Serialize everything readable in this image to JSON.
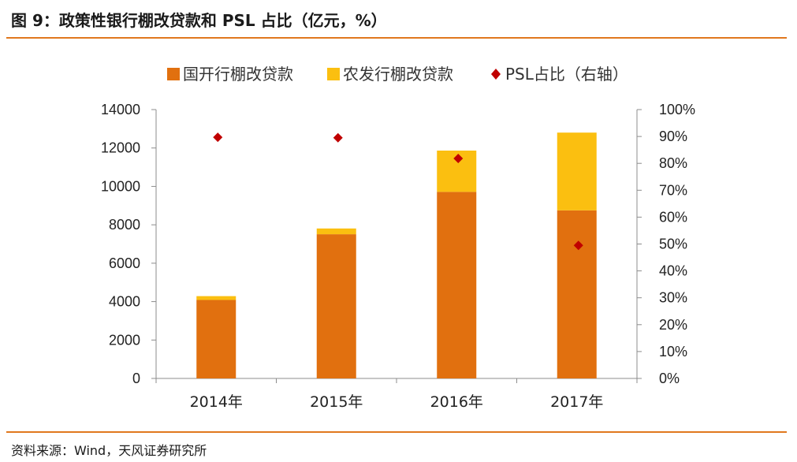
{
  "header": {
    "title": "图 9：政策性银行棚改贷款和 PSL 占比（亿元，%）"
  },
  "footer": {
    "source": "资料来源：Wind，天风证券研究所"
  },
  "colors": {
    "series1": "#e1700f",
    "series2": "#fbbf10",
    "series3": "#c00000",
    "rule": "#e0781e"
  },
  "chart_data": {
    "type": "bar",
    "stacked": true,
    "categories": [
      "2014年",
      "2015年",
      "2016年",
      "2017年"
    ],
    "series": [
      {
        "name": "国开行棚改贷款",
        "kind": "bar",
        "axis": "left",
        "values": [
          4086,
          7509,
          9715,
          8751
        ]
      },
      {
        "name": "农发行棚改贷款",
        "kind": "bar",
        "axis": "left",
        "values": [
          200,
          300,
          2150,
          4050
        ]
      },
      {
        "name": "PSL占比（右轴）",
        "kind": "scatter",
        "axis": "right",
        "values": [
          89.7,
          89.5,
          81.8,
          49.5
        ]
      }
    ],
    "yaxis_left": {
      "min": 0,
      "max": 14000,
      "ticks": [
        "0",
        "2000",
        "4000",
        "6000",
        "8000",
        "10000",
        "12000",
        "14000"
      ]
    },
    "yaxis_right": {
      "min": 0,
      "max": 100,
      "ticks": [
        "0%",
        "10%",
        "20%",
        "30%",
        "40%",
        "50%",
        "60%",
        "70%",
        "80%",
        "90%",
        "100%"
      ]
    },
    "legend_position": "top"
  }
}
